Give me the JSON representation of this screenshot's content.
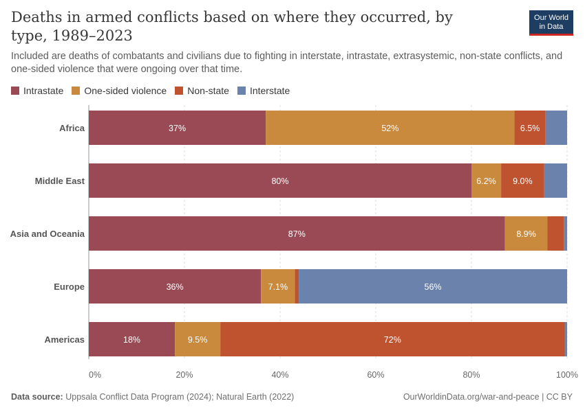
{
  "header": {
    "title": "Deaths in armed conflicts based on where they occurred, by type, 1989–2023",
    "subtitle": "Included are deaths of combatants and civilians due to fighting in interstate, intrastate, extrasystemic, non-state conflicts, and one-sided violence that were ongoing over that time.",
    "logo_line1": "Our World",
    "logo_line2": "in Data"
  },
  "footer": {
    "source_label": "Data source:",
    "source_text": "Uppsala Conflict Data Program (2024); Natural Earth (2022)",
    "credit": "OurWorldinData.org/war-and-peace | CC BY"
  },
  "colors": {
    "Intrastate": "#9a4a55",
    "One-sided violence": "#c98a3e",
    "Non-state": "#c0532f",
    "Interstate": "#6b82ad"
  },
  "chart_data": {
    "type": "bar",
    "orientation": "horizontal",
    "stacked": true,
    "categories": [
      "Africa",
      "Middle East",
      "Asia and Oceania",
      "Europe",
      "Americas"
    ],
    "series": [
      {
        "name": "Intrastate",
        "values": [
          37,
          80,
          87,
          36,
          18
        ],
        "labels": [
          "37%",
          "80%",
          "87%",
          "36%",
          "18%"
        ]
      },
      {
        "name": "One-sided violence",
        "values": [
          52,
          6.2,
          8.9,
          7.1,
          9.5
        ],
        "labels": [
          "52%",
          "6.2%",
          "8.9%",
          "7.1%",
          "9.5%"
        ]
      },
      {
        "name": "Non-state",
        "values": [
          6.5,
          9.0,
          3.4,
          0.8,
          72
        ],
        "labels": [
          "6.5%",
          "9.0%",
          "",
          "",
          "72%"
        ]
      },
      {
        "name": "Interstate",
        "values": [
          4.5,
          4.8,
          0.7,
          56.1,
          0.5
        ],
        "labels": [
          "",
          "",
          "",
          "56%",
          ""
        ]
      }
    ],
    "xlim": [
      0,
      100
    ],
    "xticks": [
      "0%",
      "20%",
      "40%",
      "60%",
      "80%",
      "100%"
    ],
    "grid": true,
    "legend_position": "top-left"
  }
}
